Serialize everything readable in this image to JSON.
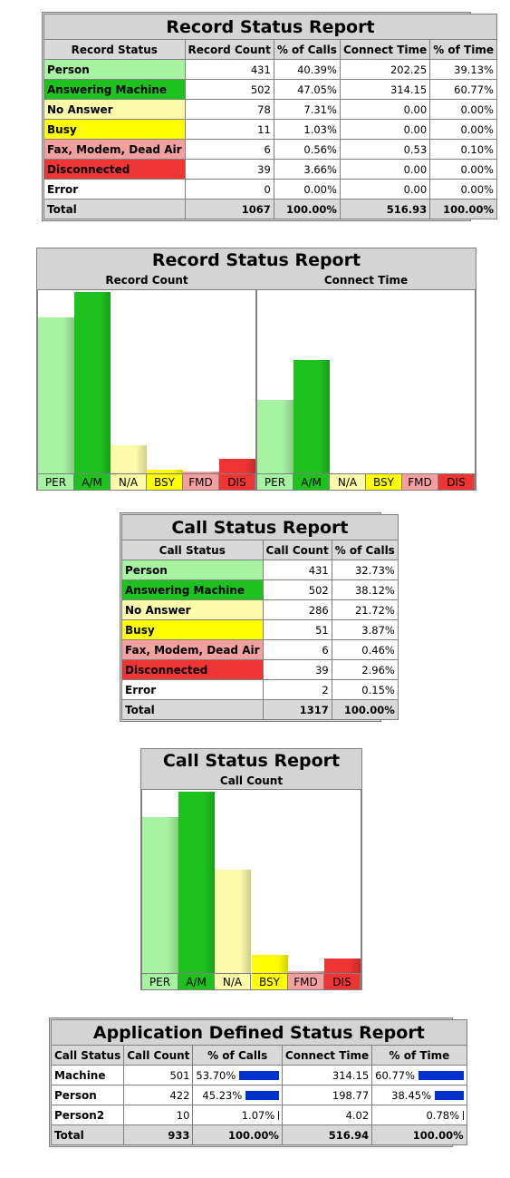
{
  "colors": {
    "PER": "#a6f3a2",
    "A/M": "#1ec21e",
    "N/A": "#fbfbaa",
    "BSY": "#ffff00",
    "FMD": "#f5a0a0",
    "DIS": "#ef3434",
    "ERR": "#ffffff",
    "pbar": "#0033cc"
  },
  "categories": [
    "PER",
    "A/M",
    "N/A",
    "BSY",
    "FMD",
    "DIS"
  ],
  "table1": {
    "title": "Record Status Report",
    "headers": [
      "Record Status",
      "Record Count",
      "% of Calls",
      "Connect Time",
      "% of Time"
    ],
    "rows": [
      {
        "label": "Person",
        "key": "PER",
        "cells": [
          "431",
          "40.39%",
          "202.25",
          "39.13%"
        ]
      },
      {
        "label": "Answering Machine",
        "key": "A/M",
        "cells": [
          "502",
          "47.05%",
          "314.15",
          "60.77%"
        ]
      },
      {
        "label": "No Answer",
        "key": "N/A",
        "cells": [
          "78",
          "7.31%",
          "0.00",
          "0.00%"
        ]
      },
      {
        "label": "Busy",
        "key": "BSY",
        "cells": [
          "11",
          "1.03%",
          "0.00",
          "0.00%"
        ]
      },
      {
        "label": "Fax, Modem, Dead Air",
        "key": "FMD",
        "cells": [
          "6",
          "0.56%",
          "0.53",
          "0.10%"
        ]
      },
      {
        "label": "Disconnected",
        "key": "DIS",
        "cells": [
          "39",
          "3.66%",
          "0.00",
          "0.00%"
        ]
      },
      {
        "label": "Error",
        "key": "ERR",
        "cells": [
          "0",
          "0.00%",
          "0.00",
          "0.00%"
        ]
      }
    ],
    "total": {
      "label": "Total",
      "cells": [
        "1067",
        "100.00%",
        "516.93",
        "100.00%"
      ]
    }
  },
  "table2": {
    "title": "Call Status Report",
    "headers": [
      "Call Status",
      "Call Count",
      "% of Calls"
    ],
    "rows": [
      {
        "label": "Person",
        "key": "PER",
        "cells": [
          "431",
          "32.73%"
        ]
      },
      {
        "label": "Answering Machine",
        "key": "A/M",
        "cells": [
          "502",
          "38.12%"
        ]
      },
      {
        "label": "No Answer",
        "key": "N/A",
        "cells": [
          "286",
          "21.72%"
        ]
      },
      {
        "label": "Busy",
        "key": "BSY",
        "cells": [
          "51",
          "3.87%"
        ]
      },
      {
        "label": "Fax, Modem, Dead Air",
        "key": "FMD",
        "cells": [
          "6",
          "0.46%"
        ]
      },
      {
        "label": "Disconnected",
        "key": "DIS",
        "cells": [
          "39",
          "2.96%"
        ]
      },
      {
        "label": "Error",
        "key": "ERR",
        "cells": [
          "2",
          "0.15%"
        ]
      }
    ],
    "total": {
      "label": "Total",
      "cells": [
        "1317",
        "100.00%"
      ]
    }
  },
  "table3": {
    "title": "Application Defined Status Report",
    "headers": [
      "Call Status",
      "Call Count",
      "% of Calls",
      "Connect Time",
      "% of Time"
    ],
    "rows": [
      {
        "label": "Machine",
        "count": "501",
        "pct_calls": "53.70%",
        "calls_frac": 0.537,
        "time": "314.15",
        "pct_time": "60.77%",
        "time_frac": 0.6077
      },
      {
        "label": "Person",
        "count": "422",
        "pct_calls": "45.23%",
        "calls_frac": 0.4523,
        "time": "198.77",
        "pct_time": "38.45%",
        "time_frac": 0.3845
      },
      {
        "label": "Person2",
        "count": "10",
        "pct_calls": "1.07%",
        "calls_frac": 0.0107,
        "time": "4.02",
        "pct_time": "0.78%",
        "time_frac": 0.0078
      }
    ],
    "total": {
      "label": "Total",
      "count": "933",
      "pct_calls": "100.00%",
      "time": "516.94",
      "pct_time": "100.00%"
    }
  },
  "chart_data": [
    {
      "type": "bar",
      "title": "Record Status Report",
      "subtitle": "Record Count",
      "categories": [
        "PER",
        "A/M",
        "N/A",
        "BSY",
        "FMD",
        "DIS"
      ],
      "values": [
        431,
        502,
        78,
        11,
        6,
        39
      ],
      "ylim": [
        0,
        502
      ],
      "legend": "none",
      "grid": false
    },
    {
      "type": "bar",
      "title": "Record Status Report",
      "subtitle": "Connect Time",
      "categories": [
        "PER",
        "A/M",
        "N/A",
        "BSY",
        "FMD",
        "DIS"
      ],
      "values": [
        202.25,
        314.15,
        0,
        0,
        0.53,
        0
      ],
      "ylim": [
        0,
        502
      ],
      "legend": "none",
      "grid": false
    },
    {
      "type": "bar",
      "title": "Call Status Report",
      "subtitle": "Call Count",
      "categories": [
        "PER",
        "A/M",
        "N/A",
        "BSY",
        "FMD",
        "DIS"
      ],
      "values": [
        431,
        502,
        286,
        51,
        6,
        39
      ],
      "ylim": [
        0,
        502
      ],
      "legend": "none",
      "grid": false
    }
  ]
}
